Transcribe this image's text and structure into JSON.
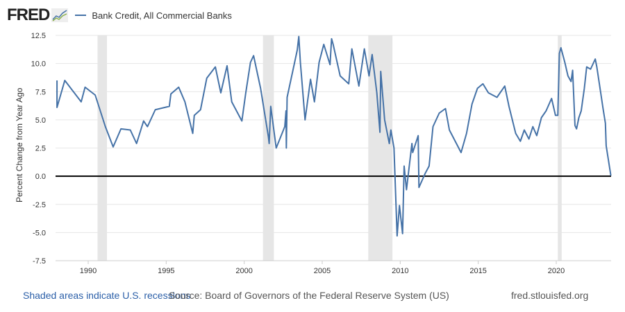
{
  "logo_text": "FRED",
  "legend": {
    "label": "Bank Credit, All Commercial Banks",
    "color": "#4572a7"
  },
  "footer": {
    "recession_note": "Shaded areas indicate U.S. recessions",
    "source": "Source: Board of Governors of the Federal Reserve System (US)",
    "site": "fred.stlouisfed.org"
  },
  "chart_data": {
    "type": "line",
    "title": "Bank Credit, All Commercial Banks",
    "xlabel": "",
    "ylabel": "Percent Change from Year Ago",
    "xlim": [
      1988,
      2023.5
    ],
    "ylim": [
      -7.5,
      12.5
    ],
    "yticks": [
      12.5,
      10.0,
      7.5,
      5.0,
      2.5,
      0.0,
      -2.5,
      -5.0,
      -7.5
    ],
    "ytick_labels": [
      "12.5",
      "10.0",
      "7.5",
      "5.0",
      "2.5",
      "0.0",
      "-2.5",
      "-5.0",
      "-7.5"
    ],
    "xticks": [
      1990,
      1995,
      2000,
      2005,
      2010,
      2015,
      2020
    ],
    "xtick_labels": [
      "1990",
      "1995",
      "2000",
      "2005",
      "2010",
      "2015",
      "2020"
    ],
    "grid": true,
    "recessions": [
      [
        1990.6,
        1991.2
      ],
      [
        2001.2,
        2001.9
      ],
      [
        2007.95,
        2009.5
      ],
      [
        2020.1,
        2020.35
      ]
    ],
    "series": [
      {
        "name": "Bank Credit, All Commercial Banks",
        "color": "#4572a7",
        "x": [
          1987.9,
          1988.0,
          1988.5,
          1989.55,
          1989.8,
          1990.45,
          1991.1,
          1991.6,
          1992.1,
          1992.7,
          1993.1,
          1993.55,
          1993.8,
          1994.3,
          1995.2,
          1995.3,
          1995.8,
          1996.2,
          1996.7,
          1996.8,
          1997.2,
          1997.6,
          1998.15,
          1998.5,
          1998.9,
          1999.2,
          1999.85,
          2000.1,
          2000.4,
          2000.6,
          2001.05,
          2001.55,
          2001.6,
          2001.7,
          2002.05,
          2002.6,
          2002.68,
          2002.7,
          2002.75,
          2003.2,
          2003.4,
          2003.5,
          2003.6,
          2003.9,
          2004.25,
          2004.5,
          2004.8,
          2005.1,
          2005.5,
          2005.6,
          2005.7,
          2006.15,
          2006.7,
          2006.9,
          2007.35,
          2007.7,
          2008.0,
          2008.2,
          2008.5,
          2008.7,
          2008.75,
          2009.0,
          2009.3,
          2009.4,
          2009.6,
          2009.8,
          2009.95,
          2010.15,
          2010.25,
          2010.4,
          2010.75,
          2010.8,
          2011.15,
          2011.2,
          2011.6,
          2011.85,
          2012.1,
          2012.5,
          2012.9,
          2013.15,
          2013.6,
          2013.9,
          2014.25,
          2014.6,
          2014.95,
          2015.3,
          2015.65,
          2016.2,
          2016.7,
          2016.97,
          2017.4,
          2017.7,
          2017.95,
          2018.25,
          2018.5,
          2018.75,
          2019.05,
          2019.35,
          2019.7,
          2019.95,
          2020.1,
          2020.2,
          2020.3,
          2020.55,
          2020.75,
          2020.95,
          2021.05,
          2021.2,
          2021.3,
          2021.45,
          2021.6,
          2021.8,
          2021.95,
          2022.2,
          2022.5,
          2022.6,
          2022.85,
          2023.0,
          2023.15,
          2023.2,
          2023.5
        ],
        "values": [
          8.5,
          6.1,
          8.5,
          6.6,
          7.9,
          7.2,
          4.4,
          2.6,
          4.2,
          4.1,
          2.9,
          4.9,
          4.4,
          5.9,
          6.2,
          7.3,
          7.9,
          6.6,
          3.8,
          5.4,
          5.9,
          8.7,
          9.7,
          7.4,
          9.8,
          6.6,
          4.9,
          7.4,
          10.1,
          10.7,
          7.8,
          3.5,
          2.9,
          6.2,
          2.5,
          4.4,
          5.8,
          2.5,
          7.0,
          9.9,
          11.2,
          12.4,
          10.1,
          5.0,
          8.6,
          6.6,
          10.1,
          11.7,
          9.9,
          12.2,
          11.7,
          8.9,
          8.2,
          11.3,
          8.0,
          11.3,
          8.9,
          10.8,
          7.4,
          3.9,
          9.3,
          5.0,
          2.9,
          4.1,
          2.5,
          -5.3,
          -2.6,
          -5.1,
          0.9,
          -1.2,
          2.9,
          2.1,
          3.6,
          -1.0,
          0.25,
          0.9,
          4.4,
          5.6,
          6.0,
          4.1,
          2.9,
          2.1,
          3.8,
          6.4,
          7.8,
          8.2,
          7.4,
          7.0,
          8.0,
          6.2,
          3.8,
          3.1,
          4.1,
          3.3,
          4.4,
          3.6,
          5.2,
          5.8,
          6.9,
          5.4,
          5.4,
          10.9,
          11.4,
          10.1,
          8.9,
          8.4,
          9.4,
          4.5,
          4.2,
          5.2,
          5.8,
          7.8,
          9.7,
          9.5,
          10.4,
          9.7,
          7.4,
          6.0,
          4.7,
          2.7,
          0.05
        ]
      }
    ]
  }
}
